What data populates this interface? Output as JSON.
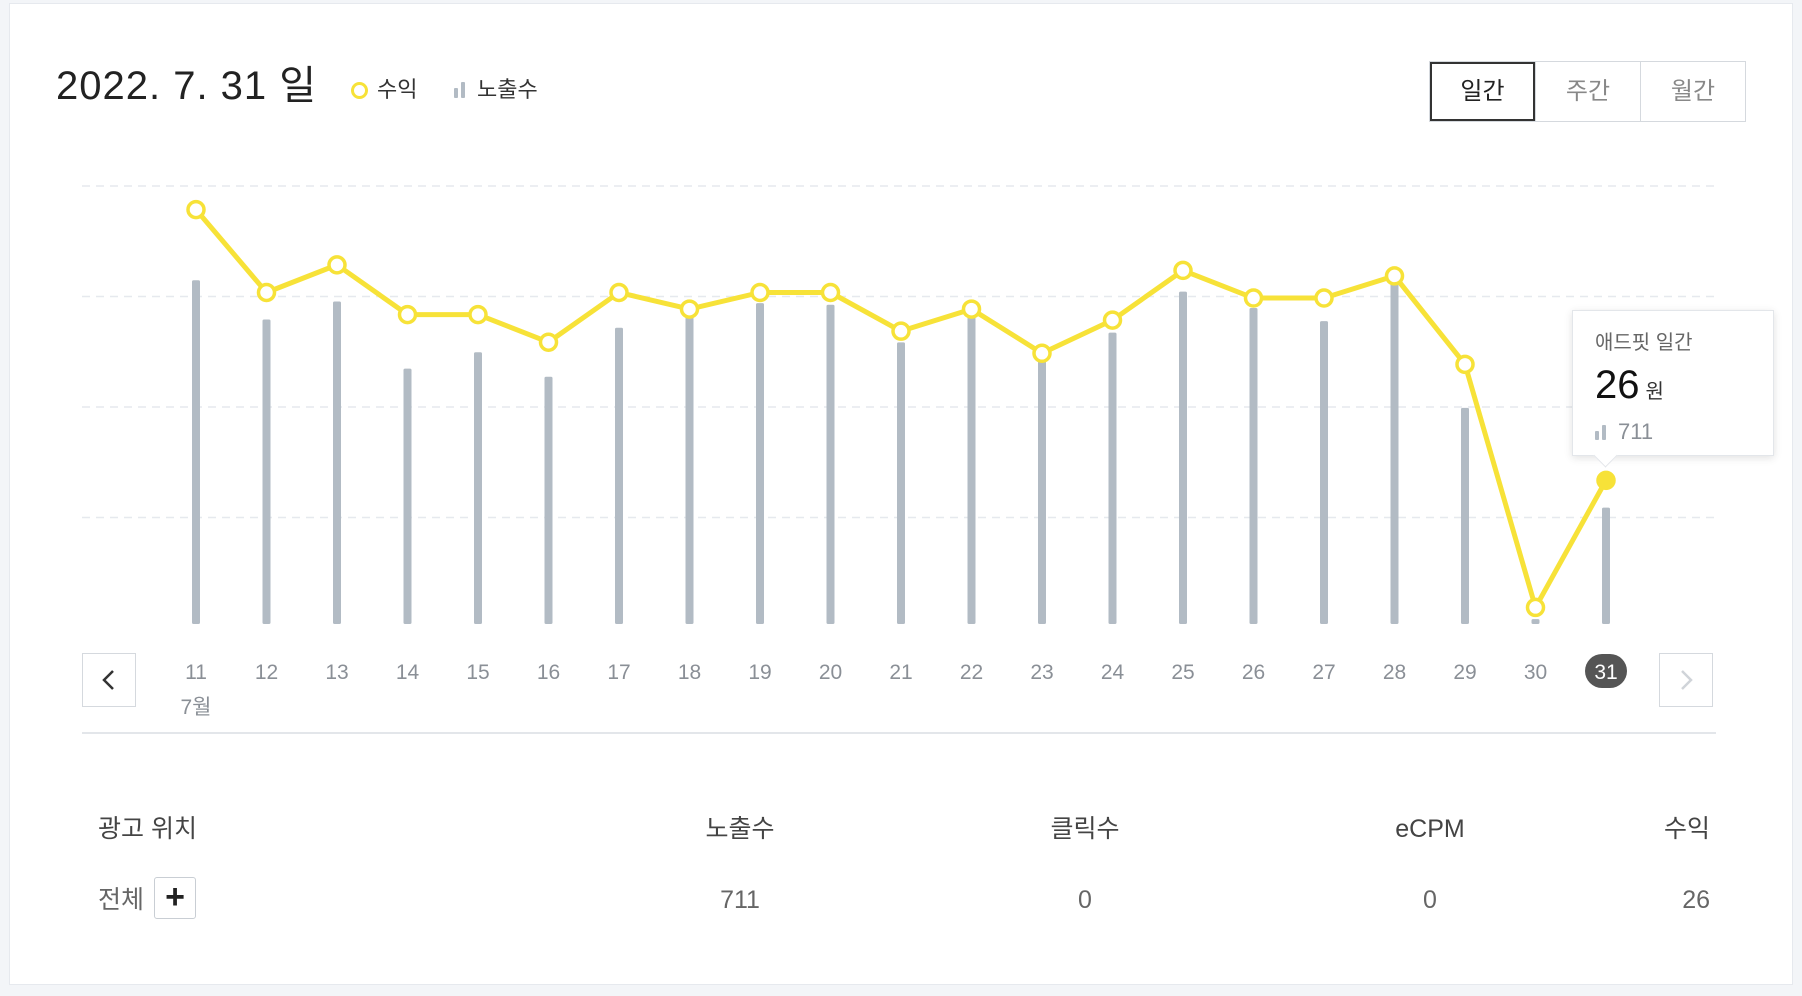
{
  "header": {
    "date_title": "2022. 7. 31 일",
    "legend_revenue": "수익",
    "legend_impressions": "노출수"
  },
  "period_tabs": [
    {
      "label": "일간",
      "active": true
    },
    {
      "label": "주간",
      "active": false
    },
    {
      "label": "월간",
      "active": false
    }
  ],
  "nav": {
    "prev_icon": "chevron-left-icon",
    "next_icon": "chevron-right-icon"
  },
  "tooltip": {
    "title": "애드핏 일간",
    "value": "26",
    "unit": "원",
    "impressions": "711"
  },
  "colors": {
    "revenue_line": "#f7e238",
    "impression_bar": "#b2bbc4",
    "active_day_bg": "#555555"
  },
  "chart_data": {
    "type": "line",
    "x": [
      "11",
      "12",
      "13",
      "14",
      "15",
      "16",
      "17",
      "18",
      "19",
      "20",
      "21",
      "22",
      "23",
      "24",
      "25",
      "26",
      "27",
      "28",
      "29",
      "30",
      "31"
    ],
    "month_label": "7월",
    "active_x": "31",
    "series": [
      {
        "name": "수익",
        "type": "line",
        "values": [
          75,
          60,
          65,
          56,
          56,
          51,
          60,
          57,
          60,
          60,
          53,
          57,
          49,
          55,
          64,
          59,
          59,
          63,
          47,
          3,
          26
        ]
      },
      {
        "name": "노출수",
        "type": "bar",
        "values": [
          2100,
          1860,
          1970,
          1560,
          1660,
          1510,
          1810,
          1880,
          1960,
          1950,
          1720,
          1880,
          1630,
          1780,
          2030,
          1930,
          1850,
          2150,
          1320,
          30,
          711
        ]
      }
    ],
    "revenue_ylim": [
      0,
      80
    ],
    "impressions_ylim": [
      0,
      2700
    ],
    "grid": true
  },
  "table": {
    "headers": {
      "position": "광고 위치",
      "impressions": "노출수",
      "clicks": "클릭수",
      "ecpm": "eCPM",
      "revenue": "수익"
    },
    "rows": [
      {
        "position": "전체",
        "add_label": "+",
        "impressions": "711",
        "clicks": "0",
        "ecpm": "0",
        "revenue": "26"
      }
    ]
  }
}
